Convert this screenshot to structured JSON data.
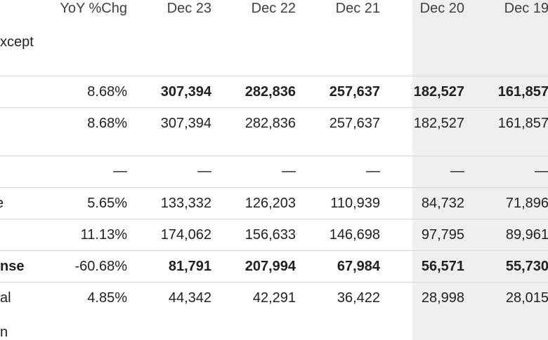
{
  "header": {
    "yoy": "YoY %Chg",
    "dec23": "Dec 23",
    "dec22": "Dec 22",
    "dec21": "Dec 21",
    "dec20": "Dec 20",
    "dec19": "Dec 19"
  },
  "subheader_label": "xcept",
  "rows": [
    {
      "label": "",
      "yoy": "8.68%",
      "dec23": "307,394",
      "dec22": "282,836",
      "dec21": "257,637",
      "dec20": "182,527",
      "dec19": "161,857"
    },
    {
      "label": "",
      "yoy": "8.68%",
      "dec23": "307,394",
      "dec22": "282,836",
      "dec21": "257,637",
      "dec20": "182,527",
      "dec19": "161,857"
    },
    {
      "label": "",
      "yoy": "—",
      "dec23": "—",
      "dec22": "—",
      "dec21": "—",
      "dec20": "—",
      "dec19": "—"
    },
    {
      "label": "e",
      "yoy": "5.65%",
      "dec23": "133,332",
      "dec22": "126,203",
      "dec21": "110,939",
      "dec20": "84,732",
      "dec19": "71,896"
    },
    {
      "label": "",
      "yoy": "11.13%",
      "dec23": "174,062",
      "dec22": "156,633",
      "dec21": "146,698",
      "dec20": "97,795",
      "dec19": "89,961"
    },
    {
      "label": "nse",
      "yoy": "-60.68%",
      "dec23": "81,791",
      "dec22": "207,994",
      "dec21": "67,984",
      "dec20": "56,571",
      "dec19": "55,730"
    },
    {
      "label": "al",
      "yoy": "4.85%",
      "dec23": "44,342",
      "dec22": "42,291",
      "dec21": "36,422",
      "dec20": "28,998",
      "dec19": "28,015"
    }
  ],
  "trailing_label": "n"
}
